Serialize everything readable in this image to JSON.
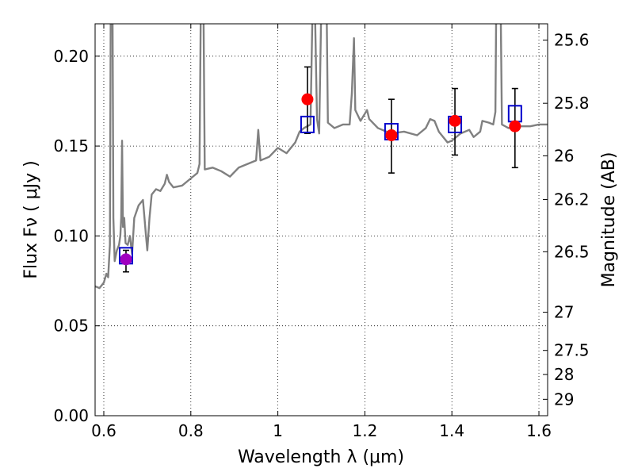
{
  "chart_data": {
    "type": "line",
    "xlabel": "Wavelength  λ (μm)",
    "ylabel": "Flux  Fν ( μJy )",
    "ylabel_right": "Magnitude (AB)",
    "xlim": [
      0.58,
      1.62
    ],
    "ylim": [
      0.0,
      0.218
    ],
    "grid": true,
    "x_ticks": [
      0.6,
      0.8,
      1.0,
      1.2,
      1.4,
      1.6
    ],
    "x_tick_labels": [
      "0.6",
      "0.8",
      "1",
      "1.2",
      "1.4",
      "1.6"
    ],
    "y_ticks": [
      0.0,
      0.05,
      0.1,
      0.15,
      0.2
    ],
    "y_tick_labels": [
      "0.00",
      "0.05",
      "0.10",
      "0.15",
      "0.20"
    ],
    "mag_ticks": [
      25.6,
      25.8,
      26,
      26.2,
      26.5,
      27,
      27.5,
      28,
      29
    ],
    "mag_tick_labels": [
      "25.6",
      "25.8",
      "26",
      "26.2",
      "26.5",
      "27",
      "27.5",
      "28",
      "29"
    ],
    "series": [
      {
        "type": "line",
        "color": "#808080",
        "points": [
          [
            0.58,
            0.072
          ],
          [
            0.59,
            0.071
          ],
          [
            0.6,
            0.074
          ],
          [
            0.606,
            0.079
          ],
          [
            0.61,
            0.077
          ],
          [
            0.614,
            0.095
          ],
          [
            0.616,
            0.23
          ],
          [
            0.62,
            0.23
          ],
          [
            0.622,
            0.11
          ],
          [
            0.625,
            0.086
          ],
          [
            0.63,
            0.092
          ],
          [
            0.635,
            0.095
          ],
          [
            0.638,
            0.1
          ],
          [
            0.64,
            0.11
          ],
          [
            0.642,
            0.153
          ],
          [
            0.644,
            0.105
          ],
          [
            0.647,
            0.11
          ],
          [
            0.65,
            0.096
          ],
          [
            0.655,
            0.095
          ],
          [
            0.66,
            0.1
          ],
          [
            0.665,
            0.09
          ],
          [
            0.67,
            0.11
          ],
          [
            0.68,
            0.117
          ],
          [
            0.69,
            0.12
          ],
          [
            0.697,
            0.1
          ],
          [
            0.7,
            0.092
          ],
          [
            0.705,
            0.11
          ],
          [
            0.71,
            0.123
          ],
          [
            0.72,
            0.126
          ],
          [
            0.73,
            0.125
          ],
          [
            0.74,
            0.129
          ],
          [
            0.745,
            0.134
          ],
          [
            0.75,
            0.13
          ],
          [
            0.76,
            0.127
          ],
          [
            0.78,
            0.128
          ],
          [
            0.8,
            0.132
          ],
          [
            0.815,
            0.135
          ],
          [
            0.82,
            0.14
          ],
          [
            0.823,
            0.23
          ],
          [
            0.829,
            0.23
          ],
          [
            0.832,
            0.137
          ],
          [
            0.85,
            0.138
          ],
          [
            0.87,
            0.136
          ],
          [
            0.89,
            0.133
          ],
          [
            0.91,
            0.138
          ],
          [
            0.93,
            0.14
          ],
          [
            0.95,
            0.142
          ],
          [
            0.955,
            0.159
          ],
          [
            0.96,
            0.142
          ],
          [
            0.98,
            0.144
          ],
          [
            1.0,
            0.149
          ],
          [
            1.02,
            0.146
          ],
          [
            1.04,
            0.152
          ],
          [
            1.05,
            0.158
          ],
          [
            1.06,
            0.16
          ],
          [
            1.075,
            0.162
          ],
          [
            1.08,
            0.23
          ],
          [
            1.085,
            0.23
          ],
          [
            1.09,
            0.165
          ],
          [
            1.095,
            0.157
          ],
          [
            1.1,
            0.23
          ],
          [
            1.112,
            0.23
          ],
          [
            1.115,
            0.163
          ],
          [
            1.13,
            0.16
          ],
          [
            1.15,
            0.162
          ],
          [
            1.165,
            0.162
          ],
          [
            1.17,
            0.179
          ],
          [
            1.175,
            0.21
          ],
          [
            1.178,
            0.17
          ],
          [
            1.19,
            0.164
          ],
          [
            1.205,
            0.17
          ],
          [
            1.21,
            0.165
          ],
          [
            1.23,
            0.16
          ],
          [
            1.26,
            0.157
          ],
          [
            1.29,
            0.158
          ],
          [
            1.32,
            0.156
          ],
          [
            1.34,
            0.16
          ],
          [
            1.35,
            0.165
          ],
          [
            1.36,
            0.164
          ],
          [
            1.37,
            0.158
          ],
          [
            1.39,
            0.152
          ],
          [
            1.4,
            0.153
          ],
          [
            1.42,
            0.157
          ],
          [
            1.44,
            0.159
          ],
          [
            1.45,
            0.155
          ],
          [
            1.465,
            0.158
          ],
          [
            1.47,
            0.164
          ],
          [
            1.485,
            0.163
          ],
          [
            1.495,
            0.162
          ],
          [
            1.5,
            0.169
          ],
          [
            1.502,
            0.23
          ],
          [
            1.512,
            0.23
          ],
          [
            1.515,
            0.162
          ],
          [
            1.53,
            0.16
          ],
          [
            1.56,
            0.161
          ],
          [
            1.58,
            0.161
          ],
          [
            1.6,
            0.162
          ],
          [
            1.62,
            0.162
          ]
        ]
      },
      {
        "type": "errorbar",
        "color": "#000000",
        "points": [
          {
            "x": 0.651,
            "low": 0.08,
            "high": 0.092
          },
          {
            "x": 1.068,
            "low": 0.157,
            "high": 0.194
          },
          {
            "x": 1.261,
            "low": 0.135,
            "high": 0.176
          },
          {
            "x": 1.407,
            "low": 0.145,
            "high": 0.182
          },
          {
            "x": 1.545,
            "low": 0.138,
            "high": 0.182
          }
        ]
      },
      {
        "type": "square",
        "color": "#0000cc",
        "points": [
          [
            0.651,
            0.089
          ],
          [
            1.068,
            0.162
          ],
          [
            1.261,
            0.158
          ],
          [
            1.407,
            0.162
          ],
          [
            1.545,
            0.168
          ]
        ]
      },
      {
        "type": "circle",
        "color": "#ff0000",
        "points": [
          [
            0.651,
            0.087
          ],
          [
            1.068,
            0.176
          ],
          [
            1.261,
            0.156
          ],
          [
            1.407,
            0.164
          ],
          [
            1.545,
            0.161
          ]
        ],
        "point_colors": [
          "#a000c0",
          "#ff0000",
          "#ff0000",
          "#ff0000",
          "#ff0000"
        ]
      }
    ]
  }
}
